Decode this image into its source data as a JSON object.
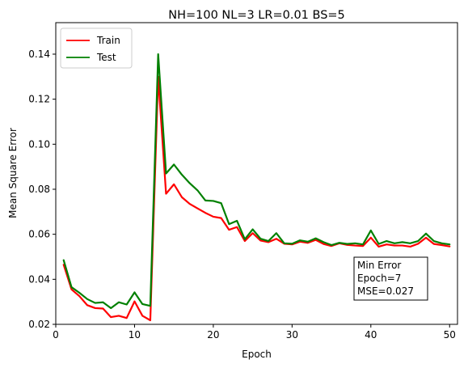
{
  "chart_data": {
    "type": "line",
    "title": "NH=100 NL=3 LR=0.01 BS=5",
    "xlabel": "Epoch",
    "ylabel": "Mean Square Error",
    "xlim": [
      0,
      51
    ],
    "ylim": [
      0.02,
      0.154
    ],
    "xticks": [
      0,
      10,
      20,
      30,
      40,
      50
    ],
    "yticks": [
      0.02,
      0.04,
      0.06,
      0.08,
      0.1,
      0.12,
      0.14
    ],
    "ytick_labels": [
      "0.02",
      "0.04",
      "0.06",
      "0.08",
      "0.10",
      "0.12",
      "0.14"
    ],
    "grid": false,
    "legend_position": "top-left",
    "x": [
      1,
      2,
      3,
      4,
      5,
      6,
      7,
      8,
      9,
      10,
      11,
      12,
      13,
      14,
      15,
      16,
      17,
      18,
      19,
      20,
      21,
      22,
      23,
      24,
      25,
      26,
      27,
      28,
      29,
      30,
      31,
      32,
      33,
      34,
      35,
      36,
      37,
      38,
      39,
      40,
      41,
      42,
      43,
      44,
      45,
      46,
      47,
      48,
      49,
      50
    ],
    "series": [
      {
        "name": "Train",
        "color": "#ff0000",
        "values": [
          0.0465,
          0.0355,
          0.0325,
          0.0285,
          0.0272,
          0.027,
          0.0232,
          0.0238,
          0.0228,
          0.0302,
          0.0238,
          0.0218,
          0.13,
          0.078,
          0.0822,
          0.0765,
          0.0735,
          0.0715,
          0.0695,
          0.0678,
          0.0672,
          0.062,
          0.0632,
          0.057,
          0.0605,
          0.0572,
          0.0565,
          0.058,
          0.0558,
          0.0555,
          0.0567,
          0.0562,
          0.0575,
          0.0557,
          0.0548,
          0.056,
          0.0553,
          0.055,
          0.0548,
          0.0585,
          0.0545,
          0.0555,
          0.055,
          0.055,
          0.0545,
          0.0558,
          0.0585,
          0.0557,
          0.0552,
          0.0546
        ]
      },
      {
        "name": "Test",
        "color": "#008000",
        "values": [
          0.0485,
          0.0365,
          0.034,
          0.0312,
          0.0295,
          0.0298,
          0.0272,
          0.0298,
          0.0288,
          0.0342,
          0.029,
          0.0282,
          0.14,
          0.087,
          0.091,
          0.0865,
          0.0827,
          0.0795,
          0.075,
          0.0748,
          0.0738,
          0.0645,
          0.066,
          0.0578,
          0.0622,
          0.058,
          0.057,
          0.0605,
          0.056,
          0.0558,
          0.0573,
          0.0567,
          0.0582,
          0.0565,
          0.0552,
          0.0562,
          0.0557,
          0.056,
          0.0555,
          0.0617,
          0.0557,
          0.057,
          0.056,
          0.0565,
          0.056,
          0.057,
          0.0603,
          0.057,
          0.056,
          0.0555
        ]
      }
    ],
    "annotation": {
      "lines": [
        "Min Error",
        "Epoch=7",
        "MSE=0.027"
      ]
    }
  }
}
